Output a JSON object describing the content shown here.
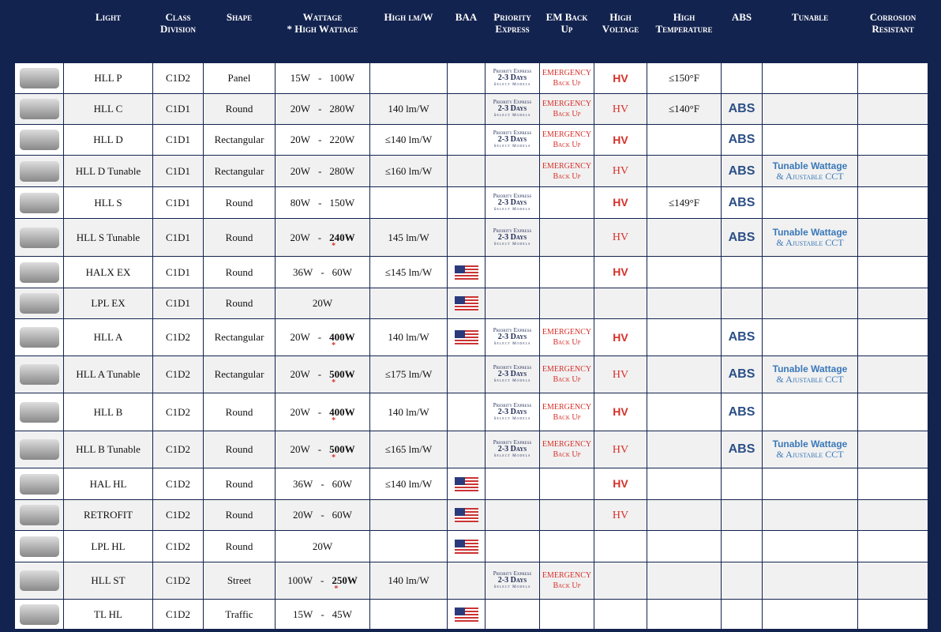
{
  "headers": {
    "light": "Light",
    "class": "Class Division",
    "shape": "Shape",
    "wattage": "Wattage",
    "wattage_note": "* High Wattage",
    "lm": "High  lm/W",
    "baa": "BAA",
    "priority": "Priority Express",
    "em": "EM  Back Up",
    "hv": "High Voltage",
    "temp": "High Temperature",
    "abs": "ABS",
    "tunable": "Tunable",
    "corrosion": "Corrosion Resistant"
  },
  "labels": {
    "pe1": "Priority Express",
    "pe2": "2-3 Days",
    "pe3": "Select Models",
    "em1": "EMERGENCY",
    "em2": "Back Up",
    "hv": "HV",
    "abs": "ABS",
    "tun1": "Tunable Wattage",
    "tun2": "& Ajustable CCT",
    "dash": "-",
    "star": "*"
  },
  "colors": {
    "header_bg": "#13234f",
    "accent_red": "#d6302a",
    "abs_blue": "#2c4f86"
  },
  "rows": [
    {
      "name": "HLL P",
      "cls": "C1D2",
      "shape": "Panel",
      "wmin": "15W",
      "wmax": "100W",
      "high": false,
      "lm": "",
      "baa": false,
      "pe": true,
      "em": true,
      "hv": "sans",
      "temp": "≤150°F",
      "abs": false,
      "tun": false,
      "icon": "panel-light-image"
    },
    {
      "name": "HLL C",
      "cls": "C1D1",
      "shape": "Round",
      "wmin": "20W",
      "wmax": "280W",
      "high": false,
      "lm": "140 lm/W",
      "baa": false,
      "pe": true,
      "em": true,
      "hv": "serif",
      "temp": "≤140°F",
      "abs": true,
      "tun": false,
      "icon": "round-light-image"
    },
    {
      "name": "HLL D",
      "cls": "C1D1",
      "shape": "Rectangular",
      "wmin": "20W",
      "wmax": "220W",
      "high": false,
      "lm": "≤140 lm/W",
      "baa": false,
      "pe": true,
      "em": true,
      "hv": "sans",
      "temp": "",
      "abs": true,
      "tun": false,
      "icon": "rectangular-light-image"
    },
    {
      "name": "HLL D Tunable",
      "cls": "C1D1",
      "shape": "Rectangular",
      "wmin": "20W",
      "wmax": "280W",
      "high": false,
      "lm": "≤160 lm/W",
      "baa": false,
      "pe": false,
      "em": true,
      "hv": "serif",
      "temp": "",
      "abs": true,
      "tun": true,
      "icon": "rectangular-light-image"
    },
    {
      "name": "HLL S",
      "cls": "C1D1",
      "shape": "Round",
      "wmin": "80W",
      "wmax": "150W",
      "high": false,
      "lm": "",
      "baa": false,
      "pe": true,
      "em": false,
      "hv": "sans",
      "temp": "≤149°F",
      "abs": true,
      "tun": false,
      "icon": "round-light-image"
    },
    {
      "name": "HLL S Tunable",
      "cls": "C1D1",
      "shape": "Round",
      "wmin": "20W",
      "wmax": "240W",
      "high": true,
      "lm": "145 lm/W",
      "baa": false,
      "pe": true,
      "em": false,
      "hv": "serif",
      "temp": "",
      "abs": true,
      "tun": true,
      "icon": "round-light-image"
    },
    {
      "name": "HALX EX",
      "cls": "C1D1",
      "shape": "Round",
      "wmin": "36W",
      "wmax": "60W",
      "high": false,
      "lm": "≤145 lm/W",
      "baa": true,
      "pe": false,
      "em": false,
      "hv": "sans",
      "temp": "",
      "abs": false,
      "tun": false,
      "icon": "round-light-image"
    },
    {
      "name": "LPL EX",
      "cls": "C1D1",
      "shape": "Round",
      "wmin": "20W",
      "wmax": "",
      "high": false,
      "lm": "",
      "baa": true,
      "pe": false,
      "em": false,
      "hv": "",
      "temp": "",
      "abs": false,
      "tun": false,
      "icon": "round-light-image"
    },
    {
      "name": "HLL A",
      "cls": "C1D2",
      "shape": "Rectangular",
      "wmin": "20W",
      "wmax": "400W",
      "high": true,
      "lm": "140 lm/W",
      "baa": true,
      "pe": true,
      "em": true,
      "hv": "sans",
      "temp": "",
      "abs": true,
      "tun": false,
      "icon": "rectangular-light-image"
    },
    {
      "name": "HLL A Tunable",
      "cls": "C1D2",
      "shape": "Rectangular",
      "wmin": "20W",
      "wmax": "500W",
      "high": true,
      "lm": "≤175 lm/W",
      "baa": false,
      "pe": true,
      "em": true,
      "hv": "serif",
      "temp": "",
      "abs": true,
      "tun": true,
      "icon": "rectangular-light-image"
    },
    {
      "name": "HLL B",
      "cls": "C1D2",
      "shape": "Round",
      "wmin": "20W",
      "wmax": "400W",
      "high": true,
      "lm": "140 lm/W",
      "baa": false,
      "pe": true,
      "em": true,
      "hv": "sans",
      "temp": "",
      "abs": true,
      "tun": false,
      "icon": "round-light-image"
    },
    {
      "name": "HLL B Tunable",
      "cls": "C1D2",
      "shape": "Round",
      "wmin": "20W",
      "wmax": "500W",
      "high": true,
      "lm": "≤165 lm/W",
      "baa": false,
      "pe": true,
      "em": true,
      "hv": "serif",
      "temp": "",
      "abs": true,
      "tun": true,
      "icon": "round-light-image"
    },
    {
      "name": "HAL HL",
      "cls": "C1D2",
      "shape": "Round",
      "wmin": "36W",
      "wmax": "60W",
      "high": false,
      "lm": "≤140 lm/W",
      "baa": true,
      "pe": false,
      "em": false,
      "hv": "sans",
      "temp": "",
      "abs": false,
      "tun": false,
      "icon": "round-light-image"
    },
    {
      "name": "RETROFIT",
      "cls": "C1D2",
      "shape": "Round",
      "wmin": "20W",
      "wmax": "60W",
      "high": false,
      "lm": "",
      "baa": true,
      "pe": false,
      "em": false,
      "hv": "serif",
      "temp": "",
      "abs": false,
      "tun": false,
      "icon": "round-light-image"
    },
    {
      "name": "LPL HL",
      "cls": "C1D2",
      "shape": "Round",
      "wmin": "20W",
      "wmax": "",
      "high": false,
      "lm": "",
      "baa": true,
      "pe": false,
      "em": false,
      "hv": "",
      "temp": "",
      "abs": false,
      "tun": false,
      "icon": "round-light-image"
    },
    {
      "name": "HLL ST",
      "cls": "C1D2",
      "shape": "Street",
      "wmin": "100W",
      "wmax": "250W",
      "high": true,
      "lm": "140 lm/W",
      "baa": false,
      "pe": true,
      "em": true,
      "hv": "",
      "temp": "",
      "abs": false,
      "tun": false,
      "icon": "street-light-image"
    },
    {
      "name": "TL HL",
      "cls": "C1D2",
      "shape": "Traffic",
      "wmin": "15W",
      "wmax": "45W",
      "high": false,
      "lm": "",
      "baa": true,
      "pe": false,
      "em": false,
      "hv": "",
      "temp": "",
      "abs": false,
      "tun": false,
      "icon": "traffic-light-image"
    }
  ]
}
